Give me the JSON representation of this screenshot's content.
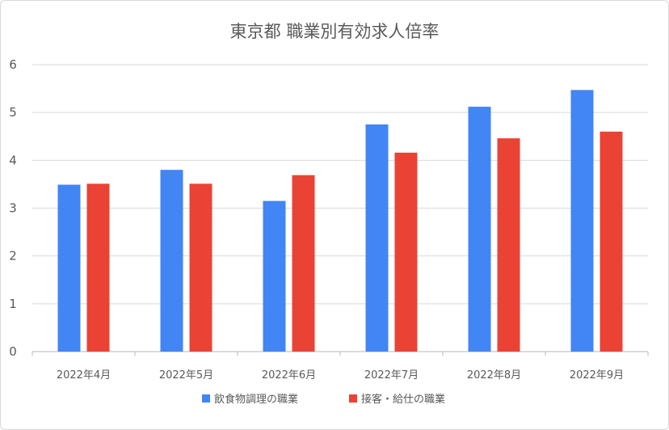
{
  "chart_data": {
    "type": "bar",
    "title": "東京都 職業別有効求人倍率",
    "categories": [
      "2022年4月",
      "2022年5月",
      "2022年6月",
      "2022年7月",
      "2022年8月",
      "2022年9月"
    ],
    "series": [
      {
        "name": "飲食物調理の職業",
        "color": "#4285f4",
        "values": [
          3.49,
          3.8,
          3.15,
          4.75,
          5.12,
          5.47
        ]
      },
      {
        "name": "接客・給仕の職業",
        "color": "#ea4335",
        "values": [
          3.51,
          3.51,
          3.69,
          4.16,
          4.46,
          4.6
        ]
      }
    ],
    "ylim": [
      0,
      6
    ],
    "yticks": [
      0,
      1,
      2,
      3,
      4,
      5,
      6
    ],
    "grid": true,
    "legend": "bottom"
  }
}
